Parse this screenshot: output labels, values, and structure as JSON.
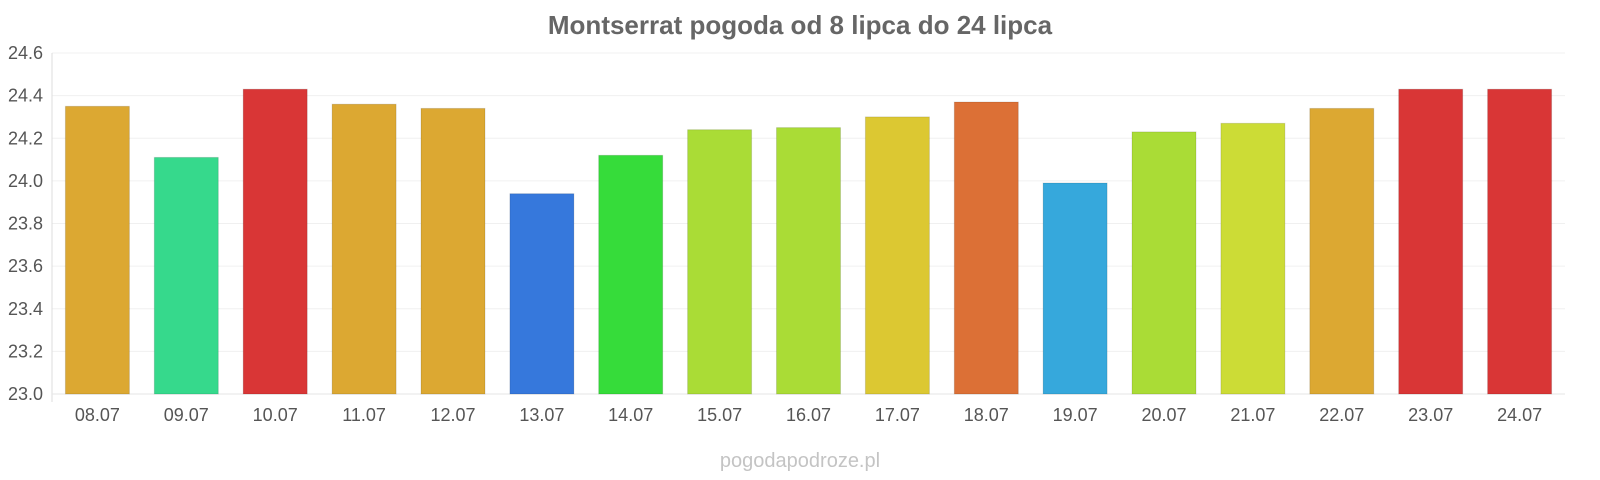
{
  "title": "Montserrat pogoda od 8 lipca do 24 lipca",
  "watermark": "pogodapodroze.pl",
  "chart_data": {
    "type": "bar",
    "title": "Montserrat pogoda od 8 lipca do 24 lipca",
    "xlabel": "",
    "ylabel": "",
    "ylim": [
      23.0,
      24.6
    ],
    "yticks": [
      "23.0",
      "23.2",
      "23.4",
      "23.6",
      "23.8",
      "24.0",
      "24.2",
      "24.4",
      "24.6"
    ],
    "grid": true,
    "categories": [
      "08.07",
      "09.07",
      "10.07",
      "11.07",
      "12.07",
      "13.07",
      "14.07",
      "15.07",
      "16.07",
      "17.07",
      "18.07",
      "19.07",
      "20.07",
      "21.07",
      "22.07",
      "23.07",
      "24.07"
    ],
    "values": [
      24.35,
      24.11,
      24.43,
      24.36,
      24.34,
      23.94,
      24.12,
      24.24,
      24.25,
      24.3,
      24.37,
      23.99,
      24.23,
      24.27,
      24.34,
      24.43,
      24.43
    ],
    "colors": [
      "#dca832",
      "#36d98c",
      "#d93636",
      "#dca832",
      "#dca832",
      "#3678dc",
      "#36dc3a",
      "#aadc36",
      "#aadc36",
      "#dcc832",
      "#dc7036",
      "#36a8dc",
      "#aadc36",
      "#ccdc36",
      "#dca832",
      "#d93636",
      "#d93636"
    ]
  }
}
